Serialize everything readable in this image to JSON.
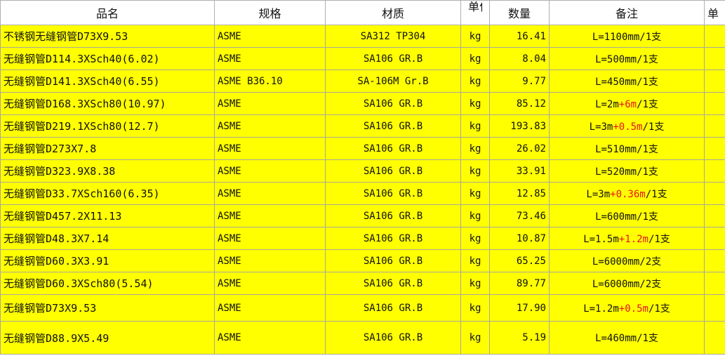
{
  "headers": [
    "品名",
    "规格",
    "材质",
    "单位",
    "数量",
    "备注",
    "单"
  ],
  "colors": {
    "cell_fill": "#ffff00",
    "highlight_text": "#e8141e"
  },
  "rows": [
    {
      "name": "不锈钢无缝钢管D73X9.53",
      "spec": "ASME",
      "material": "SA312 TP304",
      "unit": "kg",
      "qty": "16.41",
      "remark": {
        "a": "L=1100mm/1支",
        "red": "",
        "b": ""
      }
    },
    {
      "name": "无缝钢管D114.3XSch40(6.02)",
      "spec": "ASME",
      "material": "SA106 GR.B",
      "unit": "kg",
      "qty": "8.04",
      "remark": {
        "a": "L=500mm/1支",
        "red": "",
        "b": ""
      }
    },
    {
      "name": "无缝钢管D141.3XSch40(6.55)",
      "spec": "ASME B36.10",
      "material": "SA-106M Gr.B",
      "unit": "kg",
      "qty": "9.77",
      "remark": {
        "a": "L=450mm/1支",
        "red": "",
        "b": ""
      }
    },
    {
      "name": "无缝钢管D168.3XSch80(10.97)",
      "spec": "ASME",
      "material": "SA106 GR.B",
      "unit": "kg",
      "qty": "85.12",
      "remark": {
        "a": "L=2m",
        "red": "+6m",
        "b": "/1支"
      }
    },
    {
      "name": "无缝钢管D219.1XSch80(12.7)",
      "spec": "ASME",
      "material": "SA106 GR.B",
      "unit": "kg",
      "qty": "193.83",
      "remark": {
        "a": "L=3m",
        "red": "+0.5m",
        "b": "/1支"
      }
    },
    {
      "name": "无缝钢管D273X7.8",
      "spec": "ASME",
      "material": "SA106 GR.B",
      "unit": "kg",
      "qty": "26.02",
      "remark": {
        "a": "L=510mm/1支",
        "red": "",
        "b": ""
      }
    },
    {
      "name": "无缝钢管D323.9X8.38",
      "spec": "ASME",
      "material": "SA106 GR.B",
      "unit": "kg",
      "qty": "33.91",
      "remark": {
        "a": "L=520mm/1支",
        "red": "",
        "b": ""
      }
    },
    {
      "name": "无缝钢管D33.7XSch160(6.35)",
      "spec": "ASME",
      "material": "SA106 GR.B",
      "unit": "kg",
      "qty": "12.85",
      "remark": {
        "a": "L=3m",
        "red": "+0.36m",
        "b": "/1支"
      }
    },
    {
      "name": "无缝钢管D457.2X11.13",
      "spec": "ASME",
      "material": "SA106 GR.B",
      "unit": "kg",
      "qty": "73.46",
      "remark": {
        "a": "L=600mm/1支",
        "red": "",
        "b": ""
      }
    },
    {
      "name": "无缝钢管D48.3X7.14",
      "spec": "ASME",
      "material": "SA106 GR.B",
      "unit": "kg",
      "qty": "10.87",
      "remark": {
        "a": "L=1.5m",
        "red": "+1.2m",
        "b": "/1支"
      }
    },
    {
      "name": "无缝钢管D60.3X3.91",
      "spec": "ASME",
      "material": "SA106 GR.B",
      "unit": "kg",
      "qty": "65.25",
      "remark": {
        "a": "L=6000mm/2支",
        "red": "",
        "b": ""
      }
    },
    {
      "name": "无缝钢管D60.3XSch80(5.54)",
      "spec": "ASME",
      "material": "SA106 GR.B",
      "unit": "kg",
      "qty": "89.77",
      "remark": {
        "a": "L=6000mm/2支",
        "red": "",
        "b": ""
      }
    },
    {
      "name": "无缝钢管D73X9.53",
      "spec": "ASME",
      "material": "SA106 GR.B",
      "unit": "kg",
      "qty": "17.90",
      "remark": {
        "a": "L=1.2m",
        "red": "+0.5m",
        "b": "/1支"
      }
    },
    {
      "name": "无缝钢管D88.9X5.49",
      "spec": "ASME",
      "material": "SA106 GR.B",
      "unit": "kg",
      "qty": "5.19",
      "remark": {
        "a": "L=460mm/1支",
        "red": "",
        "b": ""
      }
    }
  ]
}
